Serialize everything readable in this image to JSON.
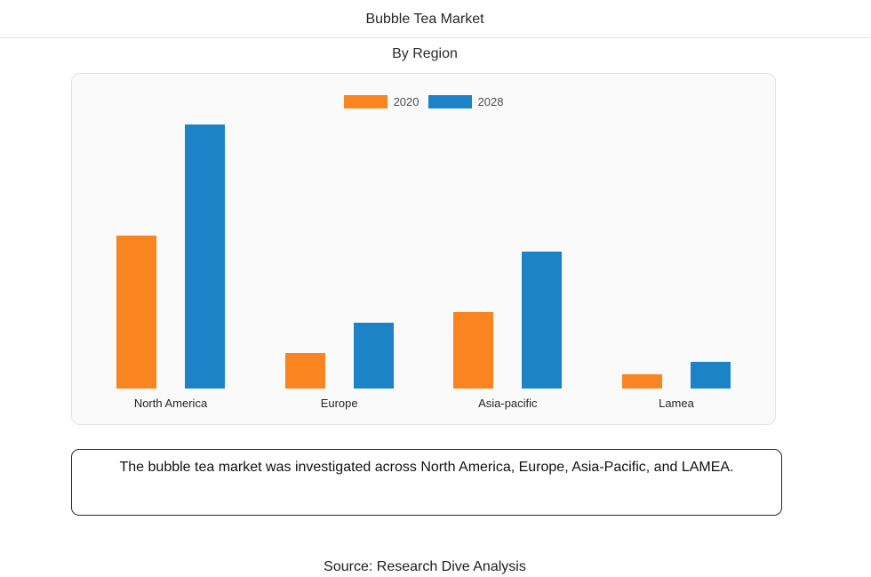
{
  "header": {
    "title": "Bubble Tea Market",
    "subtitle": "By Region"
  },
  "chart_data": {
    "type": "bar",
    "title": "Bubble Tea Market",
    "subtitle": "By Region",
    "categories": [
      "North America",
      "Europe",
      "Asia-pacific",
      "Lamea"
    ],
    "series": [
      {
        "name": "2020",
        "color": "#fa8420",
        "values": [
          58,
          13.5,
          29,
          5.5
        ]
      },
      {
        "name": "2028",
        "color": "#1b83c6",
        "values": [
          100,
          25,
          52,
          10
        ]
      }
    ],
    "ylim": [
      0,
      100
    ],
    "value_scale": "relative (no y-axis or value labels shown in image; 2028 North America bar = 100)",
    "grid": false,
    "legend_position": "top-center",
    "panel_background": "#fafafa"
  },
  "caption": {
    "text": "The bubble tea market was investigated across North America, Europe, Asia-Pacific, and LAMEA."
  },
  "footer": {
    "source": "Source: Research Dive Analysis"
  }
}
